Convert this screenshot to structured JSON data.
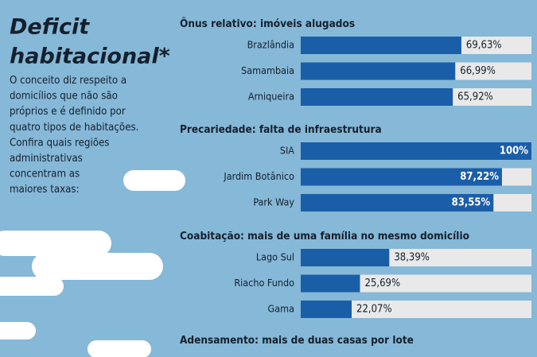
{
  "header": {
    "title_lines": [
      "Deficit",
      "habitacional*"
    ],
    "text_lines": [
      "O conceito diz respeito a",
      "domicílios que não são",
      "próprios e é definido por",
      "quatro tipos de habitações.",
      "Confira quais regiões",
      "administrativas",
      "concentram as",
      "maiores taxas:"
    ]
  },
  "chart_data": [
    {
      "type": "bar",
      "title": "Ônus relativo: imóveis alugados",
      "categories": [
        "Brazlândia",
        "Samambaia",
        "Arniqueira"
      ],
      "values": [
        69.63,
        66.99,
        65.92
      ],
      "value_labels": [
        "69,63%",
        "66,99%",
        "65,92%"
      ],
      "xlim": [
        0,
        100
      ],
      "color": "#1b5ea8"
    },
    {
      "type": "bar",
      "title": "Precariedade: falta de infraestrutura",
      "categories": [
        "SIA",
        "Jardim Botânico",
        "Park Way"
      ],
      "values": [
        100,
        87.22,
        83.55
      ],
      "value_labels": [
        "100%",
        "87,22%",
        "83,55%"
      ],
      "xlim": [
        0,
        100
      ],
      "color": "#1b5ea8"
    },
    {
      "type": "bar",
      "title": "Coabitação: mais de uma família no mesmo domicílio",
      "categories": [
        "Lago Sul",
        "Riacho Fundo",
        "Gama"
      ],
      "values": [
        38.39,
        25.69,
        22.07
      ],
      "value_labels": [
        "38,39%",
        "25,69%",
        "22,07%"
      ],
      "xlim": [
        0,
        100
      ],
      "color": "#1b5ea8"
    },
    {
      "type": "bar",
      "title": "Adensamento: mais de duas casas por lote",
      "categories": [],
      "values": [],
      "xlim": [
        0,
        100
      ],
      "color": "#1b5ea8"
    }
  ]
}
